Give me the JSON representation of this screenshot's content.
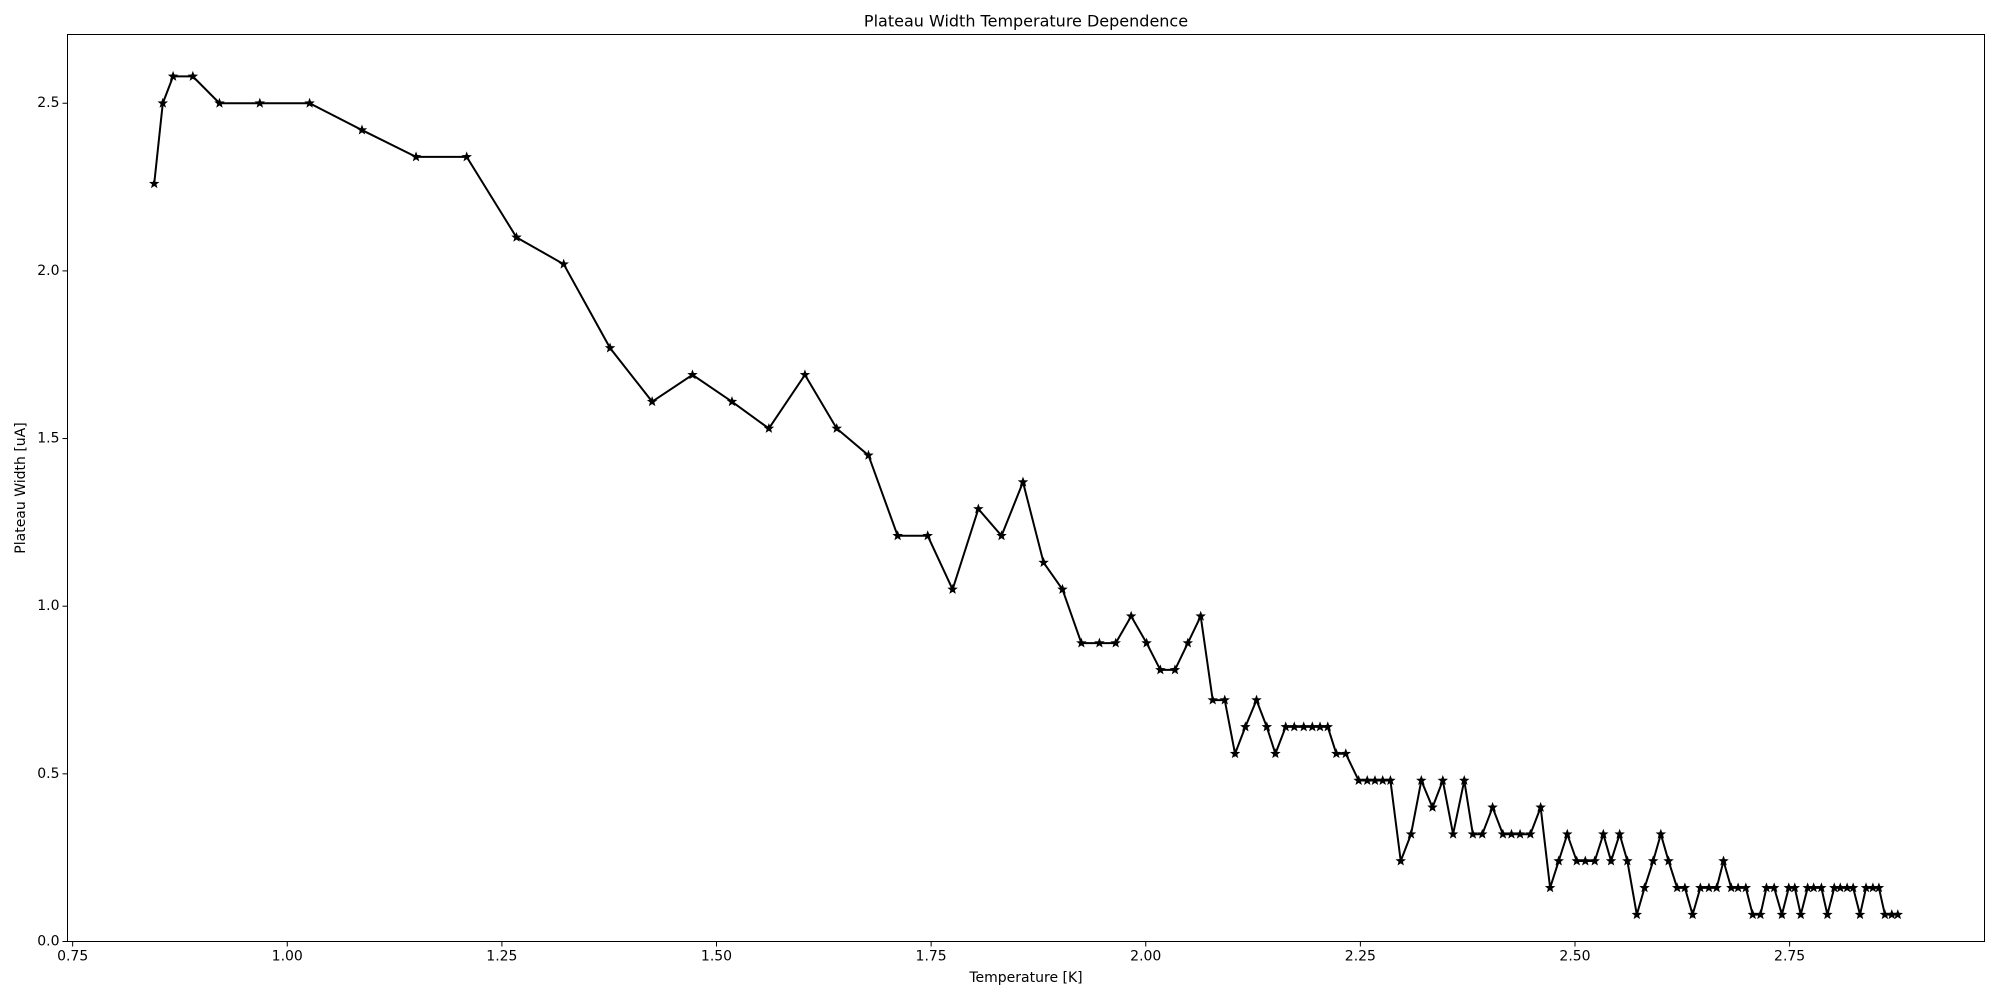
{
  "chart_data": {
    "type": "line",
    "title": "Plateau Width Temperature Dependence",
    "x_label": "Temperature [K]",
    "y_label": "Plateau Width [uA]",
    "color": "#000000",
    "marker": "star",
    "x": [
      0.845,
      0.855,
      0.867,
      0.89,
      0.921,
      0.968,
      1.026,
      1.087,
      1.15,
      1.209,
      1.267,
      1.322,
      1.376,
      1.425,
      1.472,
      1.518,
      1.561,
      1.603,
      1.64,
      1.677,
      1.711,
      1.746,
      1.775,
      1.805,
      1.832,
      1.857,
      1.881,
      1.903,
      1.925,
      1.946,
      1.965,
      1.983,
      2.001,
      2.017,
      2.034,
      2.049,
      2.064,
      2.078,
      2.092,
      2.104,
      2.116,
      2.129,
      2.141,
      2.151,
      2.163,
      2.173,
      2.184,
      2.194,
      2.203,
      2.212,
      2.222,
      2.233,
      2.248,
      2.258,
      2.267,
      2.276,
      2.285,
      2.297,
      2.309,
      2.321,
      2.334,
      2.346,
      2.358,
      2.371,
      2.381,
      2.392,
      2.404,
      2.416,
      2.426,
      2.436,
      2.448,
      2.46,
      2.471,
      2.481,
      2.491,
      2.502,
      2.512,
      2.523,
      2.533,
      2.542,
      2.552,
      2.561,
      2.572,
      2.581,
      2.591,
      2.6,
      2.609,
      2.619,
      2.628,
      2.637,
      2.646,
      2.656,
      2.665,
      2.673,
      2.682,
      2.69,
      2.699,
      2.707,
      2.716,
      2.723,
      2.732,
      2.741,
      2.749,
      2.756,
      2.763,
      2.771,
      2.778,
      2.787,
      2.794,
      2.802,
      2.809,
      2.817,
      2.824,
      2.832,
      2.839,
      2.847,
      2.854,
      2.861,
      2.869,
      2.876
    ],
    "values": [
      2.26,
      2.5,
      2.58,
      2.58,
      2.5,
      2.5,
      2.5,
      2.42,
      2.34,
      2.34,
      2.1,
      2.02,
      1.77,
      1.61,
      1.69,
      1.61,
      1.53,
      1.69,
      1.53,
      1.45,
      1.21,
      1.21,
      1.05,
      1.29,
      1.21,
      1.37,
      1.13,
      1.05,
      0.89,
      0.89,
      0.89,
      0.97,
      0.89,
      0.81,
      0.81,
      0.89,
      0.97,
      0.72,
      0.72,
      0.56,
      0.64,
      0.72,
      0.64,
      0.56,
      0.64,
      0.64,
      0.64,
      0.64,
      0.64,
      0.64,
      0.56,
      0.56,
      0.48,
      0.48,
      0.48,
      0.48,
      0.48,
      0.24,
      0.32,
      0.48,
      0.4,
      0.48,
      0.32,
      0.48,
      0.32,
      0.32,
      0.4,
      0.32,
      0.32,
      0.32,
      0.32,
      0.4,
      0.16,
      0.24,
      0.32,
      0.24,
      0.24,
      0.24,
      0.32,
      0.24,
      0.32,
      0.24,
      0.08,
      0.16,
      0.24,
      0.32,
      0.24,
      0.16,
      0.16,
      0.08,
      0.16,
      0.16,
      0.16,
      0.24,
      0.16,
      0.16,
      0.16,
      0.08,
      0.08,
      0.16,
      0.16,
      0.08,
      0.16,
      0.16,
      0.08,
      0.16,
      0.16,
      0.16,
      0.08,
      0.16,
      0.16,
      0.16,
      0.16,
      0.08,
      0.16,
      0.16,
      0.16,
      0.08,
      0.08,
      0.08
    ],
    "xlim": [
      0.744,
      2.977
    ],
    "ylim": [
      0,
      2.705
    ],
    "xticks": [
      0.75,
      {
        "value": 1.0,
        "label": "1.00"
      },
      1.25,
      {
        "value": 1.5,
        "label": "1.50"
      },
      1.75,
      {
        "value": 2.0,
        "label": "2.00"
      },
      2.25,
      {
        "value": 2.5,
        "label": "2.50"
      },
      2.75
    ],
    "yticks": [
      {
        "value": 0,
        "label": "0.0"
      },
      0.5,
      {
        "value": 1.0,
        "label": "1.0"
      },
      1.5,
      {
        "value": 2.0,
        "label": "2.0"
      },
      2.5
    ]
  }
}
